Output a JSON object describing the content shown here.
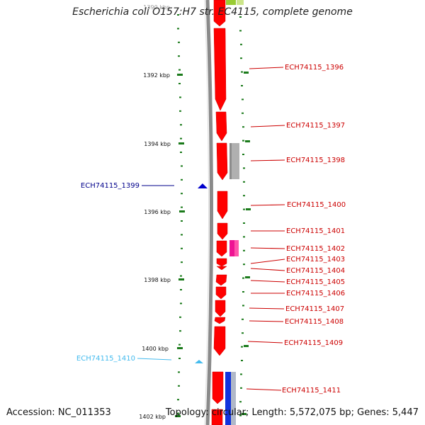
{
  "title": "Escherichia coli O157:H7 str. EC4115, complete genome",
  "footer": {
    "accession": "Accession: NC_011353",
    "summary": "Topology: circular; Length: 5,572,075 bp; Genes: 5,447"
  },
  "axis": {
    "unit": "kbp",
    "top_partial_label": "1390 kbp",
    "ticks": [
      {
        "kbp": 1392,
        "label": "1392 kbp"
      },
      {
        "kbp": 1394,
        "label": "1394 kbp"
      },
      {
        "kbp": 1396,
        "label": "1396 kbp"
      },
      {
        "kbp": 1398,
        "label": "1398 kbp"
      },
      {
        "kbp": 1400,
        "label": "1400 kbp"
      },
      {
        "kbp": 1402,
        "label": "1402 kbp"
      }
    ]
  },
  "colors": {
    "forward_gene": "#ff0000",
    "reverse_gene_dark": "#0000cc",
    "reverse_gene_light": "#44bbee",
    "tick": "#1a7a1a",
    "backbone": "#888888",
    "grey_feature": "#b0b0b0",
    "pink_feature": "#ee1493",
    "green_feature": "#99cc33",
    "blue_feature": "#1133dd"
  },
  "genes": [
    {
      "label": "ECH74115_1396",
      "strand": "+"
    },
    {
      "label": "ECH74115_1397",
      "strand": "+"
    },
    {
      "label": "ECH74115_1398",
      "strand": "+"
    },
    {
      "label": "ECH74115_1399",
      "strand": "-"
    },
    {
      "label": "ECH74115_1400",
      "strand": "+"
    },
    {
      "label": "ECH74115_1401",
      "strand": "+"
    },
    {
      "label": "ECH74115_1402",
      "strand": "+"
    },
    {
      "label": "ECH74115_1403",
      "strand": "+"
    },
    {
      "label": "ECH74115_1404",
      "strand": "+"
    },
    {
      "label": "ECH74115_1405",
      "strand": "+"
    },
    {
      "label": "ECH74115_1406",
      "strand": "+"
    },
    {
      "label": "ECH74115_1407",
      "strand": "+"
    },
    {
      "label": "ECH74115_1408",
      "strand": "+"
    },
    {
      "label": "ECH74115_1409",
      "strand": "+"
    },
    {
      "label": "ECH74115_1410",
      "strand": "-"
    },
    {
      "label": "ECH74115_1411",
      "strand": "+"
    }
  ]
}
